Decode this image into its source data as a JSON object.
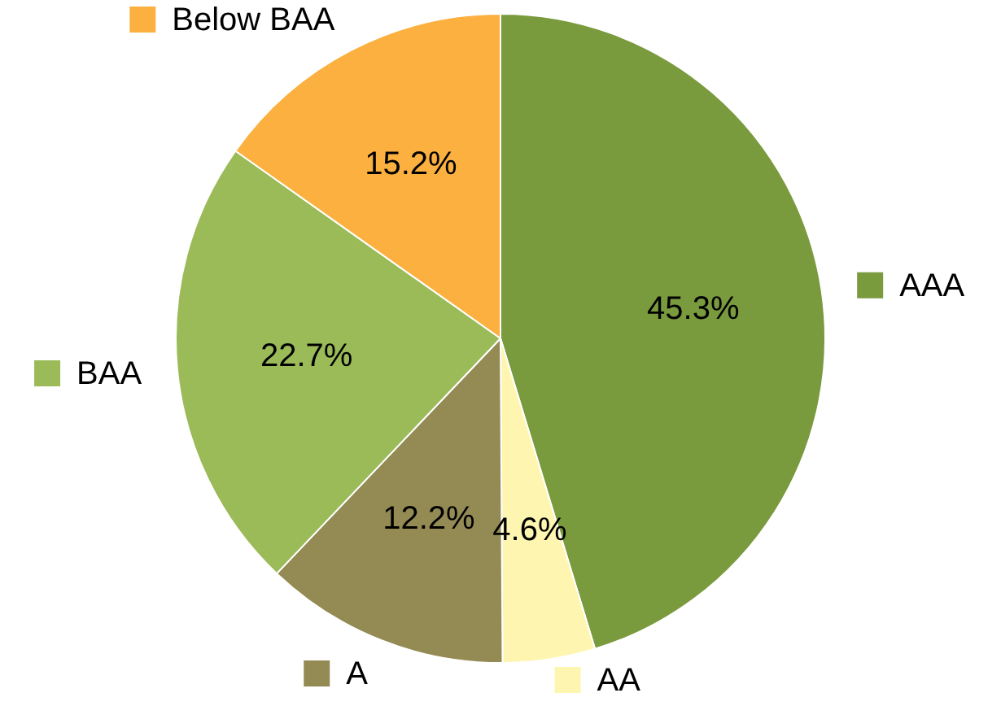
{
  "chart_data": {
    "type": "pie",
    "categories": [
      "AAA",
      "AA",
      "A",
      "BAA",
      "Below BAA"
    ],
    "values": [
      45.3,
      4.6,
      12.2,
      22.7,
      15.2
    ],
    "colors": [
      "#7a9a3e",
      "#fdf5b0",
      "#948a54",
      "#9bbb59",
      "#fbb040"
    ],
    "value_labels": [
      "45.3%",
      "4.6%",
      "12.2%",
      "22.7%",
      "15.2%"
    ],
    "legend": true
  }
}
